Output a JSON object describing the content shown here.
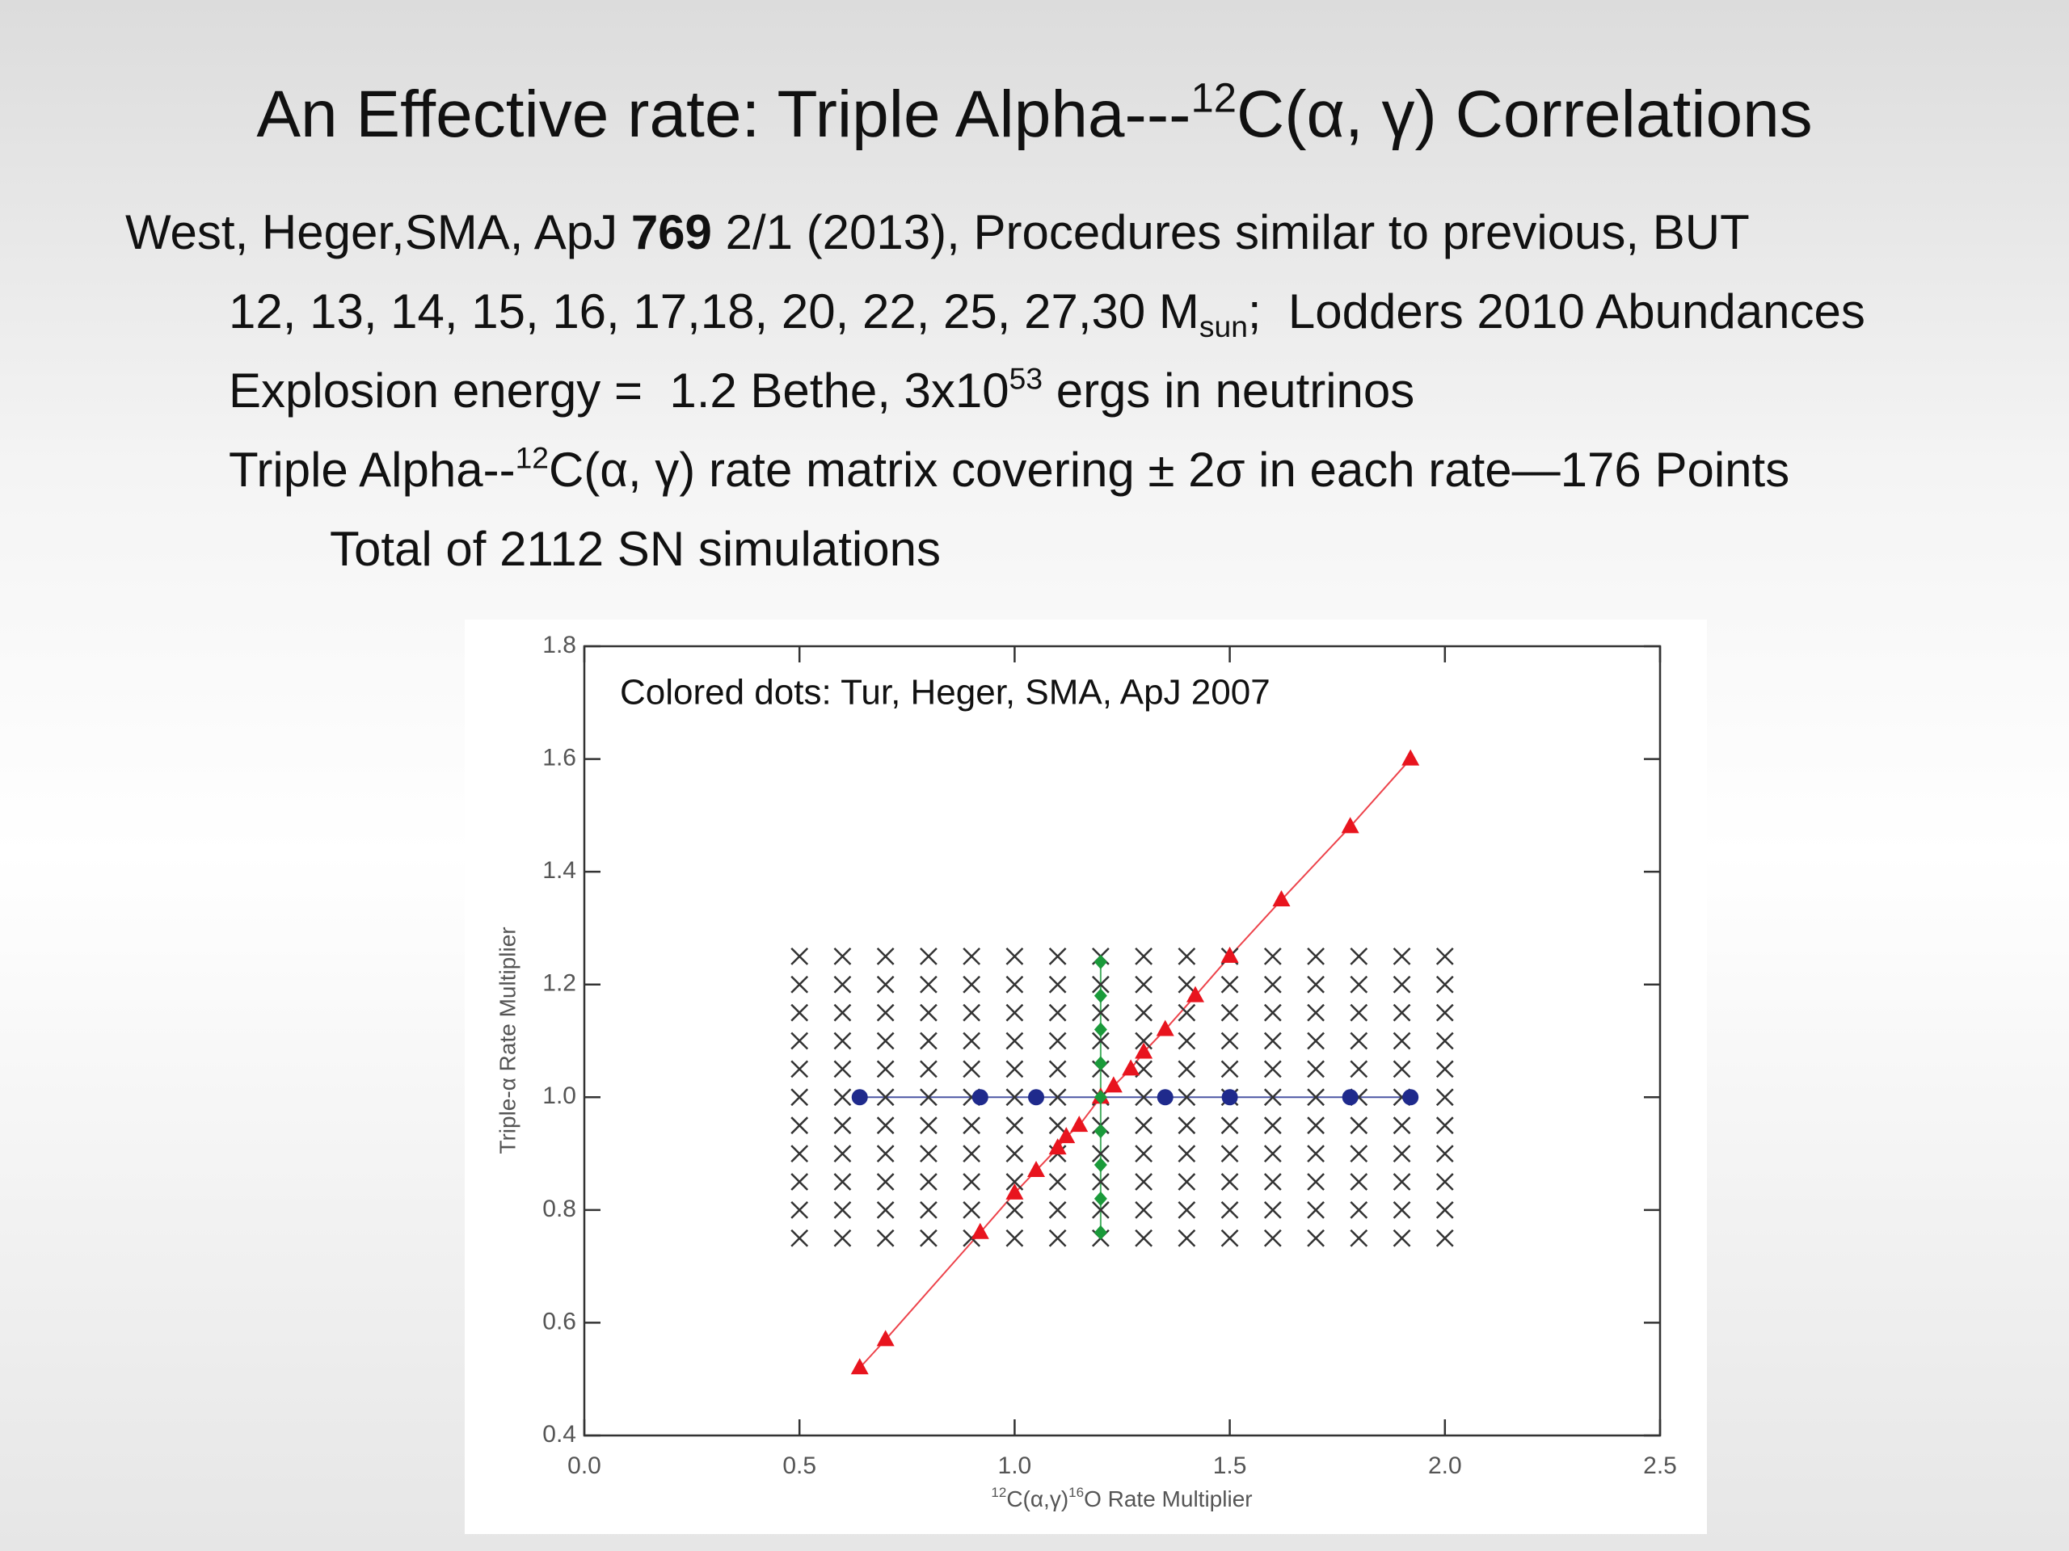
{
  "slide": {
    "title": [
      "An Effective rate: Triple Alpha---",
      "12",
      "C(α, γ) Correlations"
    ],
    "line1": [
      "West, Heger,SMA, ApJ ",
      "769",
      " 2/1 (2013), Procedures similar to previous, BUT"
    ],
    "line2": [
      "12, 13, 14, 15, 16, 17,18, 20, 22, 25, 27,30 M",
      "sun",
      ";  Lodders 2010 Abundances"
    ],
    "line3": [
      "Explosion energy =  1.2 Bethe, 3x10",
      "53",
      " ergs in neutrinos"
    ],
    "line4": [
      "Triple Alpha--",
      "12",
      "C(α, γ) rate matrix covering ± 2σ in each rate—176 Points"
    ],
    "line5": "Total of 2112 SN simulations"
  },
  "chart_data": {
    "type": "scatter",
    "annotation": "Colored dots: Tur, Heger, SMA, ApJ 2007",
    "x_label": [
      "12",
      "C(α,γ)",
      "16",
      "O Rate Multiplier"
    ],
    "y_label": "Triple-α Rate Multiplier",
    "xlim": [
      0,
      2.5
    ],
    "ylim": [
      0.4,
      1.8
    ],
    "xticks": [
      {
        "value": 0,
        "label": "0.0"
      },
      0.5,
      {
        "value": 1,
        "label": "1.0"
      },
      1.5,
      {
        "value": 2,
        "label": "2.0"
      },
      2.5
    ],
    "yticks": [
      0.4,
      0.6,
      0.8,
      {
        "value": 1,
        "label": "1.0"
      },
      1.2,
      1.4,
      1.6,
      1.8
    ],
    "series": [
      {
        "marker": "x",
        "color": "#333333",
        "line": false,
        "x": [
          0.5,
          0.6,
          0.7,
          0.8,
          0.9,
          1.0,
          1.1,
          1.2,
          1.3,
          1.4,
          1.5,
          1.6,
          1.7,
          1.8,
          1.9,
          2.0,
          0.5,
          0.6,
          0.7,
          0.8,
          0.9,
          1.0,
          1.1,
          1.2,
          1.3,
          1.4,
          1.5,
          1.6,
          1.7,
          1.8,
          1.9,
          2.0,
          0.5,
          0.6,
          0.7,
          0.8,
          0.9,
          1.0,
          1.1,
          1.2,
          1.3,
          1.4,
          1.5,
          1.6,
          1.7,
          1.8,
          1.9,
          2.0,
          0.5,
          0.6,
          0.7,
          0.8,
          0.9,
          1.0,
          1.1,
          1.2,
          1.3,
          1.4,
          1.5,
          1.6,
          1.7,
          1.8,
          1.9,
          2.0,
          0.5,
          0.6,
          0.7,
          0.8,
          0.9,
          1.0,
          1.1,
          1.2,
          1.3,
          1.4,
          1.5,
          1.6,
          1.7,
          1.8,
          1.9,
          2.0,
          0.5,
          0.6,
          0.7,
          0.8,
          0.9,
          1.0,
          1.1,
          1.2,
          1.3,
          1.4,
          1.5,
          1.6,
          1.7,
          1.8,
          1.9,
          2.0,
          0.5,
          0.6,
          0.7,
          0.8,
          0.9,
          1.0,
          1.1,
          1.2,
          1.3,
          1.4,
          1.5,
          1.6,
          1.7,
          1.8,
          1.9,
          2.0,
          0.5,
          0.6,
          0.7,
          0.8,
          0.9,
          1.0,
          1.1,
          1.2,
          1.3,
          1.4,
          1.5,
          1.6,
          1.7,
          1.8,
          1.9,
          2.0,
          0.5,
          0.6,
          0.7,
          0.8,
          0.9,
          1.0,
          1.1,
          1.2,
          1.3,
          1.4,
          1.5,
          1.6,
          1.7,
          1.8,
          1.9,
          2.0,
          0.5,
          0.6,
          0.7,
          0.8,
          0.9,
          1.0,
          1.1,
          1.2,
          1.3,
          1.4,
          1.5,
          1.6,
          1.7,
          1.8,
          1.9,
          2.0,
          0.5,
          0.6,
          0.7,
          0.8,
          0.9,
          1.0,
          1.1,
          1.2,
          1.3,
          1.4,
          1.5,
          1.6,
          1.7,
          1.8,
          1.9,
          2.0
        ],
        "y": [
          1.25,
          1.25,
          1.25,
          1.25,
          1.25,
          1.25,
          1.25,
          1.25,
          1.25,
          1.25,
          1.25,
          1.25,
          1.25,
          1.25,
          1.25,
          1.25,
          1.2,
          1.2,
          1.2,
          1.2,
          1.2,
          1.2,
          1.2,
          1.2,
          1.2,
          1.2,
          1.2,
          1.2,
          1.2,
          1.2,
          1.2,
          1.2,
          1.15,
          1.15,
          1.15,
          1.15,
          1.15,
          1.15,
          1.15,
          1.15,
          1.15,
          1.15,
          1.15,
          1.15,
          1.15,
          1.15,
          1.15,
          1.15,
          1.1,
          1.1,
          1.1,
          1.1,
          1.1,
          1.1,
          1.1,
          1.1,
          1.1,
          1.1,
          1.1,
          1.1,
          1.1,
          1.1,
          1.1,
          1.1,
          1.05,
          1.05,
          1.05,
          1.05,
          1.05,
          1.05,
          1.05,
          1.05,
          1.05,
          1.05,
          1.05,
          1.05,
          1.05,
          1.05,
          1.05,
          1.05,
          1.0,
          1.0,
          1.0,
          1.0,
          1.0,
          1.0,
          1.0,
          1.0,
          1.0,
          1.0,
          1.0,
          1.0,
          1.0,
          1.0,
          1.0,
          1.0,
          0.95,
          0.95,
          0.95,
          0.95,
          0.95,
          0.95,
          0.95,
          0.95,
          0.95,
          0.95,
          0.95,
          0.95,
          0.95,
          0.95,
          0.95,
          0.95,
          0.9,
          0.9,
          0.9,
          0.9,
          0.9,
          0.9,
          0.9,
          0.9,
          0.9,
          0.9,
          0.9,
          0.9,
          0.9,
          0.9,
          0.9,
          0.9,
          0.85,
          0.85,
          0.85,
          0.85,
          0.85,
          0.85,
          0.85,
          0.85,
          0.85,
          0.85,
          0.85,
          0.85,
          0.85,
          0.85,
          0.85,
          0.85,
          0.8,
          0.8,
          0.8,
          0.8,
          0.8,
          0.8,
          0.8,
          0.8,
          0.8,
          0.8,
          0.8,
          0.8,
          0.8,
          0.8,
          0.8,
          0.8,
          0.75,
          0.75,
          0.75,
          0.75,
          0.75,
          0.75,
          0.75,
          0.75,
          0.75,
          0.75,
          0.75,
          0.75,
          0.75,
          0.75,
          0.75,
          0.75
        ]
      },
      {
        "marker": "triangle",
        "color": "#e8141e",
        "line": true,
        "x": [
          0.64,
          0.7,
          0.92,
          1.0,
          1.05,
          1.1,
          1.12,
          1.15,
          1.2,
          1.23,
          1.27,
          1.3,
          1.35,
          1.42,
          1.5,
          1.62,
          1.78,
          1.92
        ],
        "y": [
          0.52,
          0.57,
          0.76,
          0.83,
          0.87,
          0.91,
          0.93,
          0.95,
          1.0,
          1.02,
          1.05,
          1.08,
          1.12,
          1.18,
          1.25,
          1.35,
          1.48,
          1.6
        ]
      },
      {
        "marker": "circle",
        "color": "#1f2a8c",
        "line": true,
        "x": [
          0.64,
          0.92,
          1.05,
          1.35,
          1.5,
          1.78,
          1.92
        ],
        "y": [
          1.0,
          1.0,
          1.0,
          1.0,
          1.0,
          1.0,
          1.0
        ]
      },
      {
        "marker": "diamond",
        "color": "#1a9a3a",
        "line": true,
        "x": [
          1.2,
          1.2,
          1.2,
          1.2,
          1.2,
          1.2,
          1.2,
          1.2,
          1.2
        ],
        "y": [
          1.24,
          1.18,
          1.12,
          1.06,
          1.0,
          0.94,
          0.88,
          0.82,
          0.76
        ]
      }
    ]
  }
}
